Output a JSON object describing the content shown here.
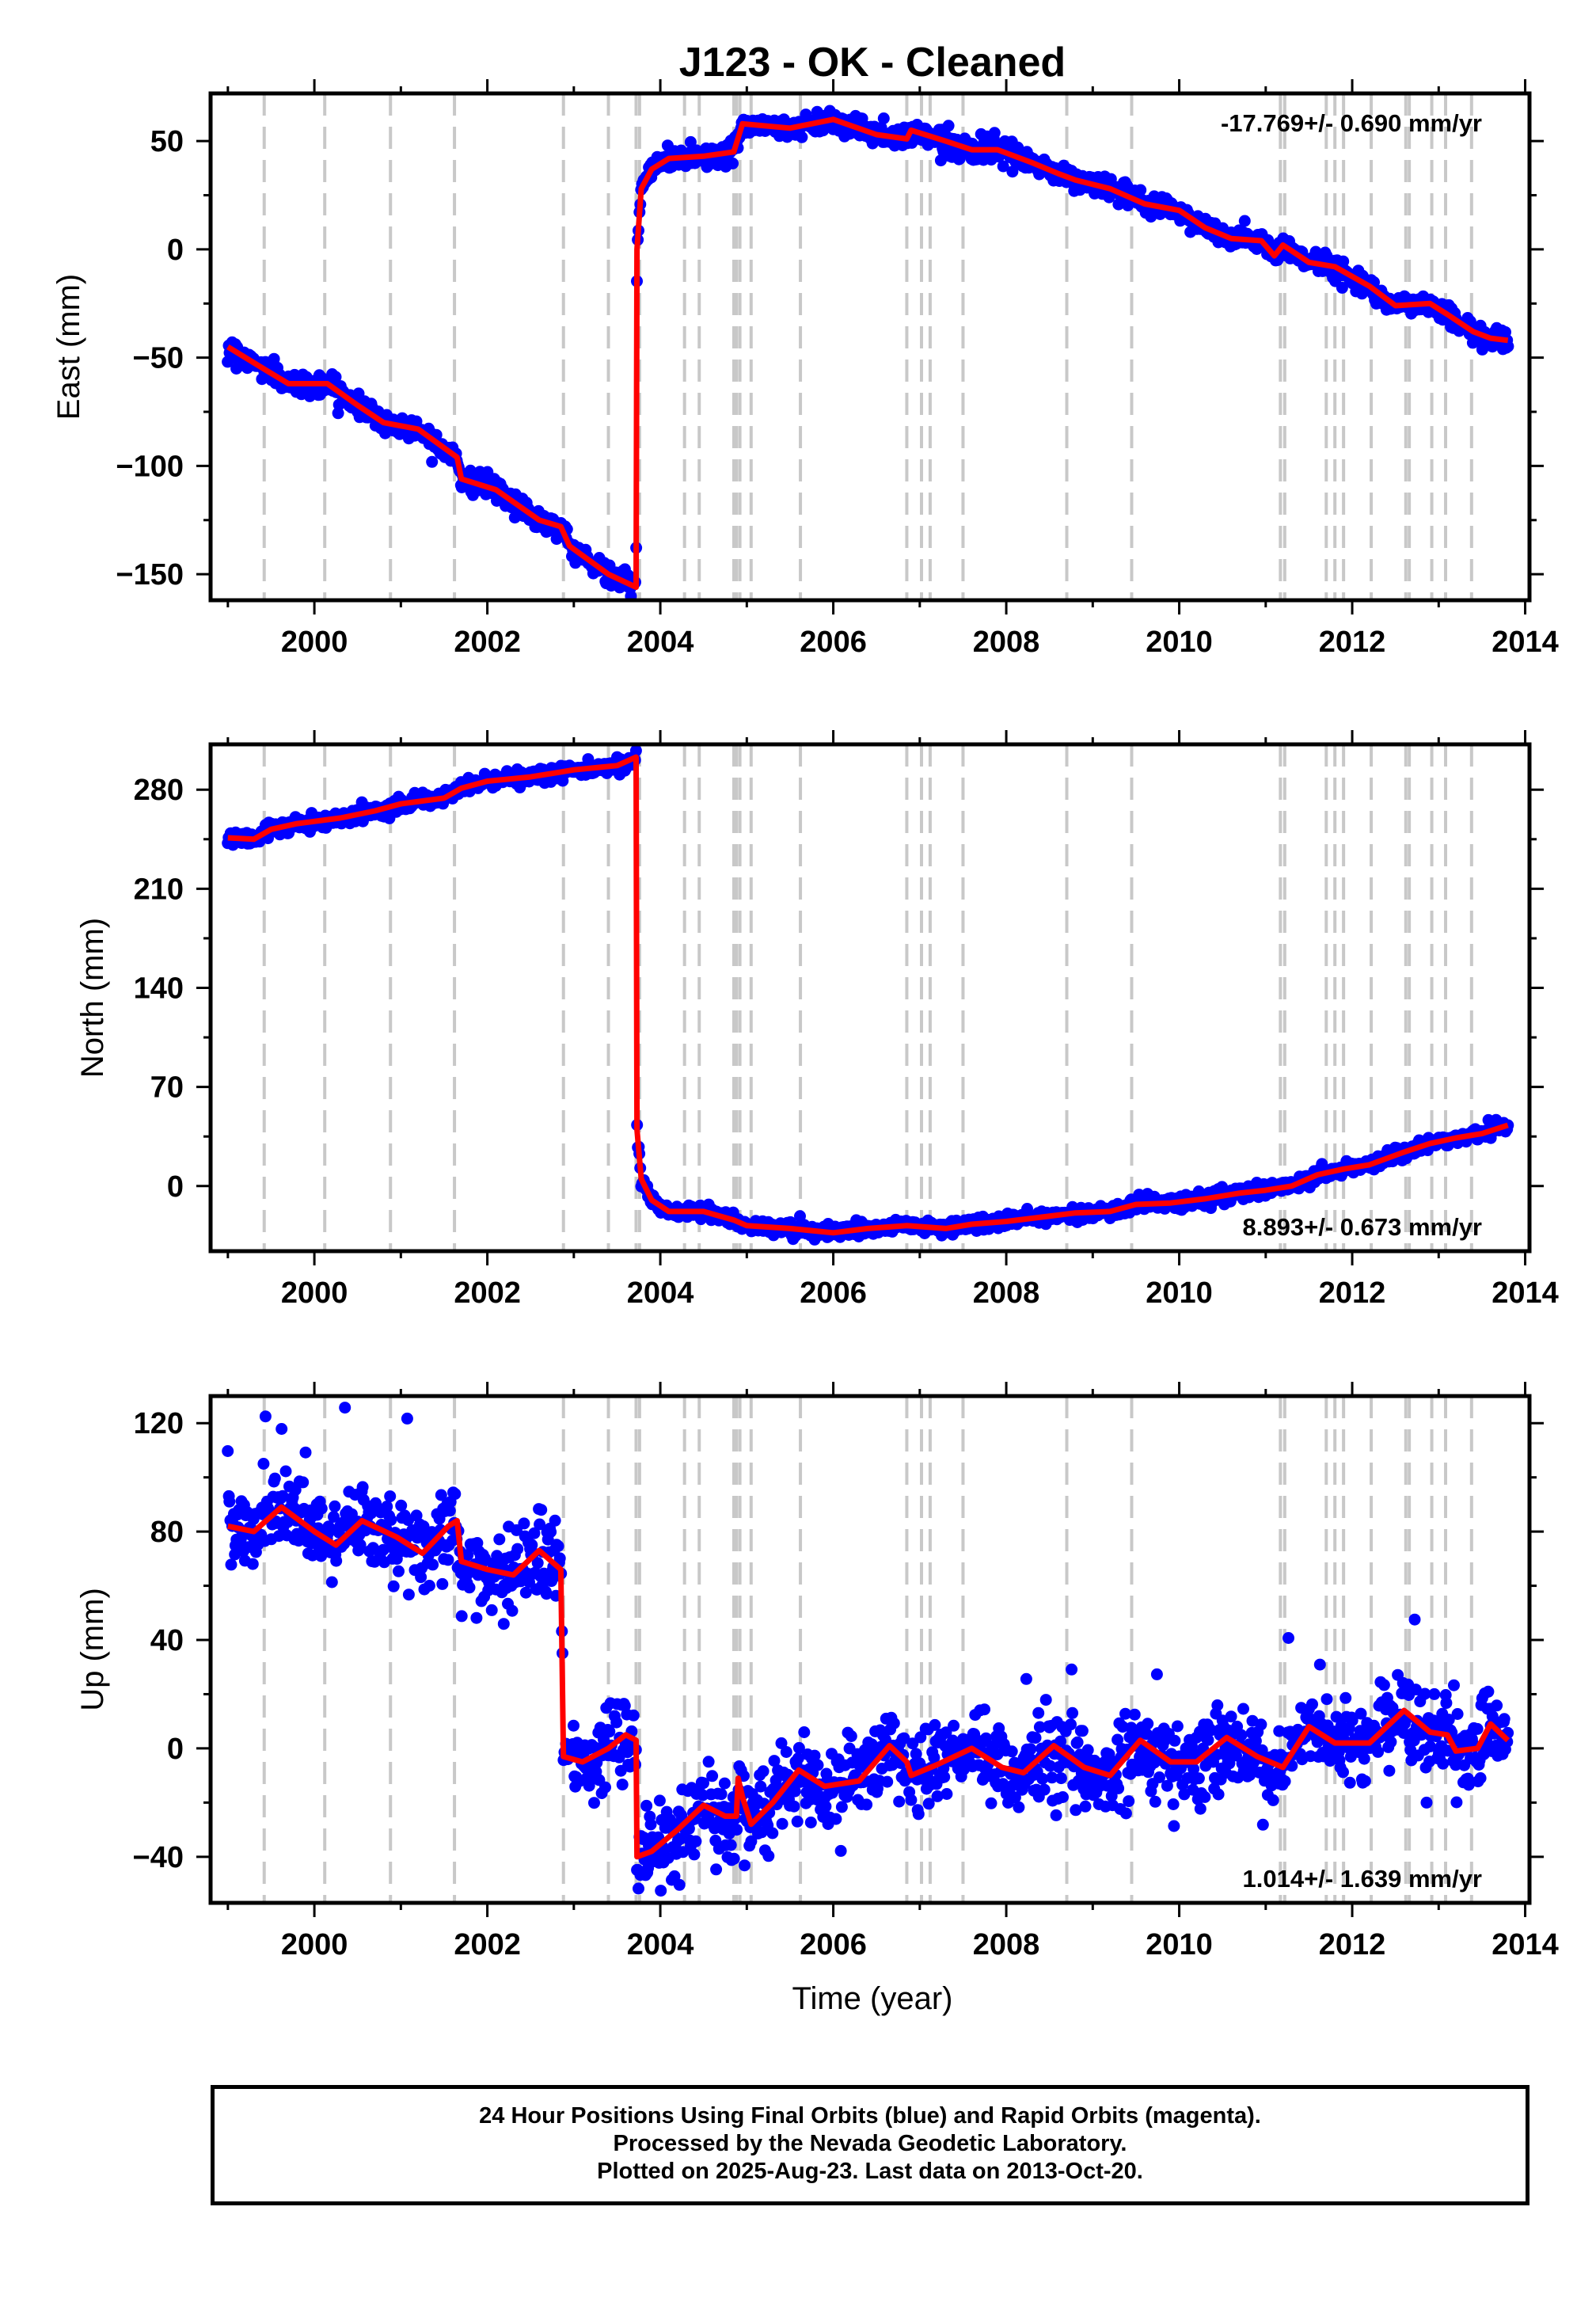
{
  "chart_data": {
    "type": "scatter",
    "title": "J123  - OK - Cleaned",
    "xlabel": "Time (year)",
    "x_ticks": [
      2000,
      2002,
      2004,
      2006,
      2008,
      2010,
      2012,
      2014
    ],
    "xlim": [
      1998.8,
      2014.05
    ],
    "vertical_dashed_lines": [
      1999.42,
      2000.12,
      2000.88,
      2001.62,
      2002.88,
      2003.4,
      2003.72,
      2003.76,
      2004.28,
      2004.45,
      2004.85,
      2004.88,
      2004.92,
      2005.05,
      2005.62,
      2006.85,
      2007.02,
      2007.12,
      2007.5,
      2008.7,
      2009.45,
      2011.17,
      2011.22,
      2011.7,
      2011.8,
      2011.9,
      2012.22,
      2012.62,
      2012.66,
      2012.92,
      2013.08,
      2013.38
    ],
    "panels": [
      {
        "id": "east",
        "ylabel": "East (mm)",
        "ylim": [
          -162,
          72
        ],
        "y_ticks": [
          50,
          0,
          -50,
          -100,
          -150
        ],
        "y_tick_labels": [
          "50",
          "0",
          "−50",
          "−100",
          "−150"
        ],
        "rate_text": "-17.769+/- 0.690 mm/yr",
        "rate_position": "top-right",
        "scatter_spread": 2.5,
        "series": [
          {
            "name": "Final Orbits (blue)",
            "color": "#0000ff",
            "kind": "points"
          },
          {
            "name": "model",
            "color": "#ff0000",
            "kind": "line"
          }
        ],
        "model": [
          [
            1999.0,
            -45
          ],
          [
            1999.45,
            -56
          ],
          [
            1999.7,
            -62
          ],
          [
            2000.15,
            -62
          ],
          [
            2000.5,
            -72
          ],
          [
            2000.8,
            -80
          ],
          [
            2001.2,
            -83
          ],
          [
            2001.65,
            -96
          ],
          [
            2001.7,
            -106
          ],
          [
            2002.1,
            -111
          ],
          [
            2002.6,
            -125
          ],
          [
            2002.85,
            -128
          ],
          [
            2002.95,
            -137
          ],
          [
            2003.4,
            -150
          ],
          [
            2003.72,
            -156
          ],
          [
            2003.73,
            0
          ],
          [
            2003.78,
            28
          ],
          [
            2003.9,
            37
          ],
          [
            2004.1,
            42
          ],
          [
            2004.5,
            43
          ],
          [
            2004.85,
            45
          ],
          [
            2004.95,
            58
          ],
          [
            2005.5,
            56
          ],
          [
            2006.0,
            60
          ],
          [
            2006.5,
            53
          ],
          [
            2006.85,
            51
          ],
          [
            2006.9,
            55
          ],
          [
            2007.3,
            50
          ],
          [
            2007.6,
            46
          ],
          [
            2007.9,
            46
          ],
          [
            2008.3,
            40
          ],
          [
            2008.6,
            35
          ],
          [
            2008.8,
            32
          ],
          [
            2009.2,
            28
          ],
          [
            2009.6,
            21
          ],
          [
            2010.0,
            18
          ],
          [
            2010.3,
            10
          ],
          [
            2010.6,
            5
          ],
          [
            2010.95,
            4
          ],
          [
            2011.1,
            -3
          ],
          [
            2011.2,
            2
          ],
          [
            2011.5,
            -6
          ],
          [
            2011.8,
            -8
          ],
          [
            2012.2,
            -17
          ],
          [
            2012.5,
            -26
          ],
          [
            2012.9,
            -25
          ],
          [
            2013.1,
            -30
          ],
          [
            2013.4,
            -38
          ],
          [
            2013.6,
            -41
          ],
          [
            2013.8,
            -42
          ]
        ]
      },
      {
        "id": "north",
        "ylabel": "North (mm)",
        "ylim": [
          -46,
          312
        ],
        "y_ticks": [
          280,
          210,
          140,
          70,
          0
        ],
        "y_tick_labels": [
          "280",
          "210",
          "140",
          "70",
          "0"
        ],
        "rate_text": "8.893+/- 0.673 mm/yr",
        "rate_position": "bottom-right",
        "scatter_spread": 2.5,
        "series": [
          {
            "name": "Final Orbits (blue)",
            "color": "#0000ff",
            "kind": "points"
          },
          {
            "name": "model",
            "color": "#ff0000",
            "kind": "line"
          }
        ],
        "model": [
          [
            1999.0,
            246
          ],
          [
            1999.3,
            245
          ],
          [
            1999.5,
            252
          ],
          [
            1999.8,
            256
          ],
          [
            2000.3,
            260
          ],
          [
            2000.7,
            265
          ],
          [
            2001.0,
            270
          ],
          [
            2001.5,
            274
          ],
          [
            2001.7,
            281
          ],
          [
            2002.0,
            286
          ],
          [
            2002.5,
            289
          ],
          [
            2002.8,
            292
          ],
          [
            2003.0,
            294
          ],
          [
            2003.5,
            297
          ],
          [
            2003.72,
            303
          ],
          [
            2003.73,
            40
          ],
          [
            2003.78,
            5
          ],
          [
            2003.9,
            -10
          ],
          [
            2004.1,
            -18
          ],
          [
            2004.5,
            -18
          ],
          [
            2004.85,
            -24
          ],
          [
            2005.0,
            -28
          ],
          [
            2005.5,
            -30
          ],
          [
            2006.0,
            -33
          ],
          [
            2006.4,
            -30
          ],
          [
            2006.85,
            -28
          ],
          [
            2007.3,
            -30
          ],
          [
            2007.6,
            -27
          ],
          [
            2008.0,
            -25
          ],
          [
            2008.4,
            -22
          ],
          [
            2008.8,
            -19
          ],
          [
            2009.2,
            -18
          ],
          [
            2009.5,
            -13
          ],
          [
            2009.9,
            -12
          ],
          [
            2010.3,
            -9
          ],
          [
            2010.7,
            -5
          ],
          [
            2011.0,
            -3
          ],
          [
            2011.3,
            0
          ],
          [
            2011.6,
            8
          ],
          [
            2011.9,
            12
          ],
          [
            2012.2,
            15
          ],
          [
            2012.6,
            24
          ],
          [
            2012.9,
            30
          ],
          [
            2013.2,
            34
          ],
          [
            2013.5,
            37
          ],
          [
            2013.8,
            43
          ]
        ]
      },
      {
        "id": "up",
        "ylabel": "Up (mm)",
        "ylim": [
          -57,
          130
        ],
        "y_ticks": [
          120,
          80,
          40,
          0,
          -40
        ],
        "y_tick_labels": [
          "120",
          "80",
          "40",
          "0",
          "−40"
        ],
        "rate_text": "1.014+/- 1.639 mm/yr",
        "rate_position": "bottom-right",
        "scatter_spread": 7.5,
        "series": [
          {
            "name": "Final Orbits (blue)",
            "color": "#0000ff",
            "kind": "points"
          },
          {
            "name": "model",
            "color": "#ff0000",
            "kind": "line"
          }
        ],
        "model": [
          [
            1999.0,
            82
          ],
          [
            1999.3,
            80
          ],
          [
            1999.62,
            89
          ],
          [
            2000.0,
            80
          ],
          [
            2000.25,
            75
          ],
          [
            2000.55,
            84
          ],
          [
            2000.95,
            78
          ],
          [
            2001.25,
            72
          ],
          [
            2001.55,
            82
          ],
          [
            2001.65,
            84
          ],
          [
            2001.7,
            69
          ],
          [
            2002.0,
            66
          ],
          [
            2002.3,
            64
          ],
          [
            2002.6,
            73
          ],
          [
            2002.85,
            66
          ],
          [
            2002.88,
            -3
          ],
          [
            2003.1,
            -5
          ],
          [
            2003.4,
            0
          ],
          [
            2003.6,
            5
          ],
          [
            2003.72,
            3
          ],
          [
            2003.73,
            -40
          ],
          [
            2003.9,
            -38
          ],
          [
            2004.2,
            -30
          ],
          [
            2004.5,
            -21
          ],
          [
            2004.75,
            -25
          ],
          [
            2004.88,
            -25
          ],
          [
            2004.9,
            -11
          ],
          [
            2004.95,
            -18
          ],
          [
            2005.05,
            -28
          ],
          [
            2005.3,
            -20
          ],
          [
            2005.6,
            -8
          ],
          [
            2005.9,
            -14
          ],
          [
            2006.3,
            -12
          ],
          [
            2006.65,
            1
          ],
          [
            2006.85,
            -5
          ],
          [
            2006.9,
            -10
          ],
          [
            2007.2,
            -6
          ],
          [
            2007.6,
            0
          ],
          [
            2007.95,
            -7
          ],
          [
            2008.2,
            -9
          ],
          [
            2008.55,
            1
          ],
          [
            2008.9,
            -7
          ],
          [
            2009.2,
            -10
          ],
          [
            2009.55,
            3
          ],
          [
            2009.9,
            -5
          ],
          [
            2010.2,
            -5
          ],
          [
            2010.55,
            4
          ],
          [
            2010.9,
            -3
          ],
          [
            2011.2,
            -7
          ],
          [
            2011.5,
            8
          ],
          [
            2011.8,
            2
          ],
          [
            2012.2,
            2
          ],
          [
            2012.6,
            14
          ],
          [
            2012.9,
            6
          ],
          [
            2013.1,
            5
          ],
          [
            2013.2,
            -1
          ],
          [
            2013.45,
            0
          ],
          [
            2013.6,
            9
          ],
          [
            2013.8,
            3
          ]
        ]
      }
    ]
  },
  "footer": {
    "line1": "24 Hour Positions Using Final Orbits (blue) and Rapid Orbits (magenta).",
    "line2": "Processed by the Nevada Geodetic Laboratory.",
    "line3": "Plotted on 2025-Aug-23. Last data on 2013-Oct-20."
  }
}
